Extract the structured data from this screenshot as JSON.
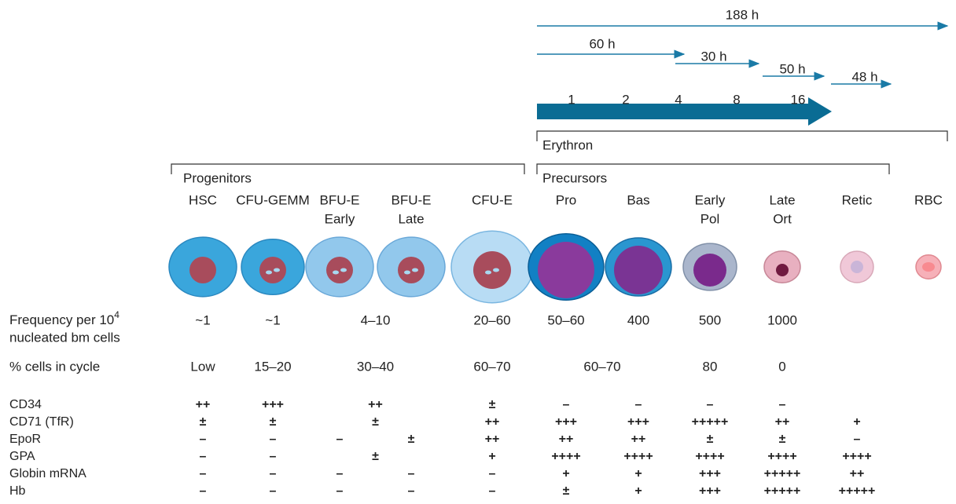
{
  "timeline": {
    "arrows": [
      "188 h",
      "60 h",
      "30 h",
      "50 h",
      "48 h"
    ],
    "divisions": [
      "1",
      "2",
      "4",
      "8",
      "16"
    ]
  },
  "brackets": {
    "erythron": "Erythron",
    "progenitors": "Progenitors",
    "precursors": "Precursors"
  },
  "stages": [
    [
      "HSC"
    ],
    [
      "CFU-GEMM"
    ],
    [
      "BFU-E",
      "Early"
    ],
    [
      "BFU-E",
      "Late"
    ],
    [
      "CFU-E"
    ],
    [
      "Pro"
    ],
    [
      "Bas"
    ],
    [
      "Early",
      "Pol"
    ],
    [
      "Late",
      "Ort"
    ],
    [
      "Retic"
    ],
    [
      "RBC"
    ]
  ],
  "frequency": {
    "label": "Frequency per 10",
    "sup": "4",
    "label2": "nucleated bm cells",
    "values": [
      "~1",
      "~1",
      "4–10",
      "20–60",
      "50–60",
      "400",
      "500",
      "1000"
    ]
  },
  "cycle": {
    "label": "% cells in cycle",
    "values": [
      "Low",
      "15–20",
      "30–40",
      "60–70",
      "60–70",
      "80",
      "0"
    ]
  },
  "markers": [
    {
      "label": "CD34",
      "values": [
        "++",
        "+++",
        "++",
        "±",
        "–",
        "–",
        "–",
        "–"
      ]
    },
    {
      "label": "CD71 (TfR)",
      "values": [
        "±",
        "±",
        "±",
        "++",
        "+++",
        "+++",
        "+++++",
        "++",
        "+"
      ]
    },
    {
      "label": "EpoR",
      "values": [
        "–",
        "–",
        "–",
        "±",
        "++",
        "++",
        "++",
        "±",
        "±",
        "–"
      ]
    },
    {
      "label": "GPA",
      "values": [
        "–",
        "–",
        "±",
        "+",
        "++++",
        "++++",
        "++++",
        "++++",
        "++++"
      ]
    },
    {
      "label": "Globin mRNA",
      "values": [
        "–",
        "–",
        "–",
        "–",
        "–",
        "+",
        "+",
        "+++",
        "+++++",
        "++"
      ]
    },
    {
      "label": "Hb",
      "values": [
        "–",
        "–",
        "–",
        "–",
        "–",
        "±",
        "+",
        "+++",
        "+++++",
        "+++++"
      ]
    }
  ]
}
